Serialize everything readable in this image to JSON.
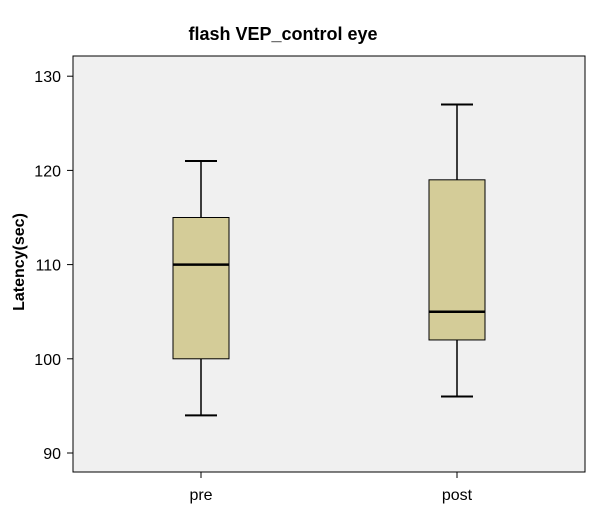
{
  "chart_data": {
    "type": "box",
    "title": "flash VEP_control eye",
    "xlabel": "",
    "ylabel": "Latency(sec)",
    "ylim": [
      88,
      131
    ],
    "yticks": [
      90,
      100,
      110,
      120,
      130
    ],
    "categories": [
      "pre",
      "post"
    ],
    "boxes": [
      {
        "category": "pre",
        "whisker_low": 94,
        "q1": 100,
        "median": 110,
        "q3": 115,
        "whisker_high": 121
      },
      {
        "category": "post",
        "whisker_low": 96,
        "q1": 102,
        "median": 105,
        "q3": 119,
        "whisker_high": 127
      }
    ],
    "colors": {
      "box_fill": "#d4cc98",
      "plot_bg": "#f0f0f0",
      "line": "#000000"
    },
    "grid": false,
    "legend": "none"
  }
}
